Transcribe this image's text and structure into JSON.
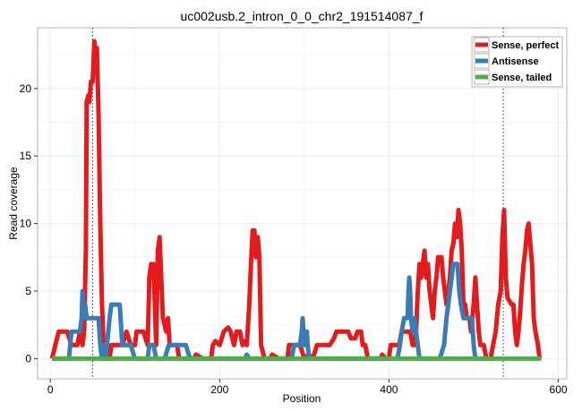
{
  "chart_data": {
    "type": "line",
    "title": "uc002usb.2_intron_0_0_chr2_191514087_f",
    "xlabel": "Position",
    "ylabel": "Read coverage",
    "xlim": [
      -15,
      610
    ],
    "ylim": [
      -1.5,
      24.5
    ],
    "xticks": [
      0,
      200,
      400,
      600
    ],
    "yticks": [
      0,
      5,
      10,
      15,
      20
    ],
    "grid": true,
    "legend_position": "top-right",
    "vlines": [
      50,
      535
    ],
    "series": [
      {
        "name": "Sense, perfect",
        "color": "#e41a1c",
        "points": [
          [
            2,
            0
          ],
          [
            10,
            2
          ],
          [
            20,
            2
          ],
          [
            25,
            1
          ],
          [
            32,
            1
          ],
          [
            35,
            2
          ],
          [
            38,
            1
          ],
          [
            40,
            2
          ],
          [
            42,
            8
          ],
          [
            43,
            19
          ],
          [
            45,
            19.5
          ],
          [
            46,
            19
          ],
          [
            48,
            20.5
          ],
          [
            50,
            20.5
          ],
          [
            52,
            23.5
          ],
          [
            54,
            22
          ],
          [
            55,
            23
          ],
          [
            57,
            18
          ],
          [
            59,
            10
          ],
          [
            61,
            4
          ],
          [
            63,
            1
          ],
          [
            65,
            0
          ],
          [
            70,
            0
          ],
          [
            72,
            1
          ],
          [
            85,
            1
          ],
          [
            90,
            2
          ],
          [
            95,
            1
          ],
          [
            100,
            1
          ],
          [
            102,
            2
          ],
          [
            110,
            2
          ],
          [
            115,
            1
          ],
          [
            117,
            6
          ],
          [
            119,
            7
          ],
          [
            120,
            6
          ],
          [
            122,
            7
          ],
          [
            125,
            1
          ],
          [
            127,
            8
          ],
          [
            129,
            9
          ],
          [
            131,
            6
          ],
          [
            133,
            3
          ],
          [
            137,
            2
          ],
          [
            139,
            3
          ],
          [
            141,
            1
          ],
          [
            145,
            1
          ],
          [
            150,
            1
          ],
          [
            152,
            0
          ],
          [
            170,
            0
          ],
          [
            172,
            0.3
          ],
          [
            180,
            0
          ],
          [
            190,
            0
          ],
          [
            192,
            1
          ],
          [
            195,
            1.3
          ],
          [
            200,
            1
          ],
          [
            205,
            2
          ],
          [
            210,
            2.3
          ],
          [
            213,
            2
          ],
          [
            217,
            1
          ],
          [
            220,
            2
          ],
          [
            224,
            2
          ],
          [
            227,
            1
          ],
          [
            230,
            1.3
          ],
          [
            232,
            1
          ],
          [
            235,
            4
          ],
          [
            237,
            7
          ],
          [
            239,
            9.5
          ],
          [
            241,
            9.5
          ],
          [
            243,
            7.5
          ],
          [
            245,
            9
          ],
          [
            247,
            7.5
          ],
          [
            249,
            1
          ],
          [
            253,
            0
          ],
          [
            260,
            0
          ],
          [
            262,
            0.3
          ],
          [
            270,
            0
          ],
          [
            280,
            0
          ],
          [
            282,
            1
          ],
          [
            295,
            1
          ],
          [
            300,
            0
          ],
          [
            305,
            0.3
          ],
          [
            310,
            0
          ],
          [
            315,
            1
          ],
          [
            330,
            1
          ],
          [
            335,
            1.5
          ],
          [
            338,
            2
          ],
          [
            352,
            2
          ],
          [
            355,
            1.5
          ],
          [
            360,
            1.5
          ],
          [
            363,
            2
          ],
          [
            367,
            2
          ],
          [
            369,
            1
          ],
          [
            372,
            1
          ],
          [
            375,
            0
          ],
          [
            380,
            0
          ],
          [
            390,
            0
          ],
          [
            392,
            0.3
          ],
          [
            396,
            0
          ],
          [
            400,
            0
          ],
          [
            402,
            1
          ],
          [
            412,
            1
          ],
          [
            415,
            2
          ],
          [
            425,
            2
          ],
          [
            428,
            1
          ],
          [
            430,
            1
          ],
          [
            432,
            2
          ],
          [
            434,
            5
          ],
          [
            436,
            7
          ],
          [
            438,
            6
          ],
          [
            440,
            7
          ],
          [
            442,
            8
          ],
          [
            444,
            6
          ],
          [
            446,
            7
          ],
          [
            448,
            5
          ],
          [
            450,
            4
          ],
          [
            452,
            3
          ],
          [
            454,
            5
          ],
          [
            456,
            6
          ],
          [
            458,
            7.5
          ],
          [
            462,
            7.5
          ],
          [
            464,
            6
          ],
          [
            466,
            5
          ],
          [
            468,
            4
          ],
          [
            470,
            5
          ],
          [
            472,
            6
          ],
          [
            474,
            8
          ],
          [
            476,
            8.5
          ],
          [
            478,
            10
          ],
          [
            480,
            9
          ],
          [
            482,
            11
          ],
          [
            484,
            10
          ],
          [
            486,
            8
          ],
          [
            488,
            4
          ],
          [
            490,
            4
          ],
          [
            492,
            3
          ],
          [
            495,
            3
          ],
          [
            497,
            2
          ],
          [
            500,
            4
          ],
          [
            502,
            6
          ],
          [
            504,
            4
          ],
          [
            506,
            2
          ],
          [
            508,
            1
          ],
          [
            512,
            1
          ],
          [
            515,
            0
          ],
          [
            520,
            0
          ],
          [
            523,
            1
          ],
          [
            526,
            2
          ],
          [
            529,
            4
          ],
          [
            532,
            5
          ],
          [
            534,
            9
          ],
          [
            536,
            11
          ],
          [
            538,
            6
          ],
          [
            540,
            4.5
          ],
          [
            545,
            4
          ],
          [
            547,
            4
          ],
          [
            549,
            2
          ],
          [
            551,
            1
          ],
          [
            553,
            2
          ],
          [
            555,
            3.5
          ],
          [
            557,
            5.5
          ],
          [
            559,
            7
          ],
          [
            561,
            8
          ],
          [
            563,
            9.5
          ],
          [
            565,
            10
          ],
          [
            567,
            8.5
          ],
          [
            569,
            7
          ],
          [
            571,
            3
          ],
          [
            573,
            2
          ],
          [
            576,
            1
          ],
          [
            578,
            0
          ]
        ]
      },
      {
        "name": "Antisense",
        "color": "#377eb8",
        "points": [
          [
            2,
            0
          ],
          [
            10,
            0
          ],
          [
            20,
            0
          ],
          [
            22,
            0
          ],
          [
            25,
            2
          ],
          [
            35,
            2
          ],
          [
            37,
            3
          ],
          [
            38,
            5
          ],
          [
            39,
            3
          ],
          [
            41,
            4
          ],
          [
            43,
            3
          ],
          [
            57,
            3
          ],
          [
            59,
            1
          ],
          [
            61,
            0
          ],
          [
            63,
            1
          ],
          [
            65,
            0
          ],
          [
            67,
            1
          ],
          [
            70,
            3
          ],
          [
            72,
            4
          ],
          [
            82,
            4
          ],
          [
            85,
            1
          ],
          [
            95,
            1
          ],
          [
            100,
            0
          ],
          [
            105,
            0
          ],
          [
            115,
            0
          ],
          [
            117,
            1
          ],
          [
            122,
            1
          ],
          [
            125,
            0
          ],
          [
            135,
            0
          ],
          [
            140,
            1
          ],
          [
            145,
            1
          ],
          [
            160,
            1
          ],
          [
            165,
            0
          ],
          [
            170,
            0
          ],
          [
            180,
            0
          ],
          [
            185,
            0
          ],
          [
            190,
            0
          ],
          [
            195,
            0
          ],
          [
            200,
            0
          ],
          [
            210,
            0
          ],
          [
            220,
            0
          ],
          [
            230,
            0
          ],
          [
            232,
            0.3
          ],
          [
            235,
            0
          ],
          [
            240,
            0
          ],
          [
            245,
            0
          ],
          [
            250,
            0
          ],
          [
            260,
            0
          ],
          [
            270,
            0
          ],
          [
            280,
            0
          ],
          [
            285,
            0
          ],
          [
            288,
            1
          ],
          [
            295,
            1
          ],
          [
            297,
            2
          ],
          [
            298,
            3
          ],
          [
            300,
            1
          ],
          [
            303,
            2
          ],
          [
            304,
            1
          ],
          [
            306,
            0
          ],
          [
            310,
            0
          ],
          [
            320,
            0
          ],
          [
            330,
            0
          ],
          [
            340,
            0
          ],
          [
            350,
            0
          ],
          [
            360,
            0
          ],
          [
            370,
            0
          ],
          [
            380,
            0
          ],
          [
            390,
            0
          ],
          [
            400,
            0
          ],
          [
            405,
            0
          ],
          [
            410,
            0
          ],
          [
            413,
            1
          ],
          [
            415,
            2
          ],
          [
            418,
            3
          ],
          [
            422,
            3
          ],
          [
            423,
            5
          ],
          [
            424,
            6
          ],
          [
            425,
            5
          ],
          [
            426,
            3
          ],
          [
            428,
            2
          ],
          [
            430,
            3
          ],
          [
            432,
            2
          ],
          [
            434,
            1
          ],
          [
            436,
            0
          ],
          [
            440,
            0
          ],
          [
            450,
            0
          ],
          [
            460,
            0
          ],
          [
            465,
            1
          ],
          [
            468,
            3
          ],
          [
            470,
            4
          ],
          [
            472,
            5
          ],
          [
            474,
            6
          ],
          [
            476,
            7
          ],
          [
            481,
            7
          ],
          [
            483,
            5
          ],
          [
            485,
            4
          ],
          [
            488,
            3
          ],
          [
            490,
            3
          ],
          [
            494,
            3
          ],
          [
            498,
            3
          ],
          [
            500,
            1
          ],
          [
            502,
            0
          ],
          [
            510,
            0
          ],
          [
            515,
            0
          ]
        ]
      },
      {
        "name": "Sense, tailed",
        "color": "#4daf4a",
        "points": [
          [
            2,
            0
          ],
          [
            580,
            0
          ]
        ]
      }
    ]
  }
}
